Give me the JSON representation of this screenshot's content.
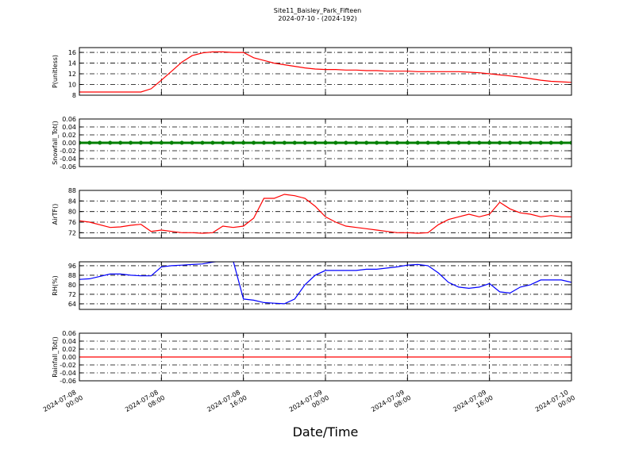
{
  "title": "Site11_Baisley_Park_Fifteen",
  "subtitle": "2024-07-10 - (2024-192)",
  "xlabel": "Date/Time",
  "xlim": [
    "2024-07-08 00:00",
    "2024-07-10 00:00"
  ],
  "xticks": [
    "2024-07-08 00:00",
    "2024-07-08 08:00",
    "2024-07-08 16:00",
    "2024-07-09 00:00",
    "2024-07-09 08:00",
    "2024-07-09 16:00",
    "2024-07-10 00:00"
  ],
  "x": [
    "2024-07-08 00:00",
    "2024-07-08 01:00",
    "2024-07-08 02:00",
    "2024-07-08 03:00",
    "2024-07-08 04:00",
    "2024-07-08 05:00",
    "2024-07-08 06:00",
    "2024-07-08 07:00",
    "2024-07-08 08:00",
    "2024-07-08 09:00",
    "2024-07-08 10:00",
    "2024-07-08 11:00",
    "2024-07-08 12:00",
    "2024-07-08 13:00",
    "2024-07-08 14:00",
    "2024-07-08 15:00",
    "2024-07-08 16:00",
    "2024-07-08 17:00",
    "2024-07-08 18:00",
    "2024-07-08 19:00",
    "2024-07-08 20:00",
    "2024-07-08 21:00",
    "2024-07-08 22:00",
    "2024-07-08 23:00",
    "2024-07-09 00:00",
    "2024-07-09 01:00",
    "2024-07-09 02:00",
    "2024-07-09 03:00",
    "2024-07-09 04:00",
    "2024-07-09 05:00",
    "2024-07-09 06:00",
    "2024-07-09 07:00",
    "2024-07-09 08:00",
    "2024-07-09 09:00",
    "2024-07-09 10:00",
    "2024-07-09 11:00",
    "2024-07-09 12:00",
    "2024-07-09 13:00",
    "2024-07-09 14:00",
    "2024-07-09 15:00",
    "2024-07-09 16:00",
    "2024-07-09 17:00",
    "2024-07-09 18:00",
    "2024-07-09 19:00",
    "2024-07-09 20:00",
    "2024-07-09 21:00",
    "2024-07-09 22:00",
    "2024-07-09 23:00",
    "2024-07-10 00:00"
  ],
  "chart_data": [
    {
      "type": "line",
      "ylabel": "P(unitless)",
      "ylim": [
        8,
        16.9
      ],
      "yticks": [
        8,
        10,
        12,
        14,
        16
      ],
      "grid": true,
      "series": [
        {
          "color": "#ff0000",
          "values": [
            8.6,
            8.6,
            8.6,
            8.6,
            8.6,
            8.6,
            8.6,
            9.2,
            10.8,
            12.5,
            14.2,
            15.4,
            15.9,
            16.1,
            16.1,
            16,
            16,
            15,
            14.5,
            14,
            13.7,
            13.4,
            13.1,
            12.9,
            12.8,
            12.8,
            12.7,
            12.7,
            12.6,
            12.6,
            12.5,
            12.5,
            12.5,
            12.4,
            12.4,
            12.4,
            12.4,
            12.4,
            12.3,
            12.2,
            12,
            11.8,
            11.6,
            11.4,
            11.1,
            10.8,
            10.6,
            10.5,
            10.4
          ]
        }
      ]
    },
    {
      "type": "line",
      "ylabel": "Snowfall_Tot()",
      "ylim": [
        -0.06,
        0.06
      ],
      "yticks": [
        {
          "value": -0.06,
          "label": "-0.06"
        },
        {
          "value": -0.04,
          "label": "-0.04"
        },
        {
          "value": -0.02,
          "label": "-0.02"
        },
        {
          "value": 0,
          "label": "0.00"
        },
        {
          "value": 0.02,
          "label": "0.02"
        },
        {
          "value": 0.04,
          "label": "0.04"
        },
        {
          "value": 0.06,
          "label": "0.06"
        }
      ],
      "grid": true,
      "series": [
        {
          "color": "#008000",
          "marker": true,
          "values": [
            0,
            0,
            0,
            0,
            0,
            0,
            0,
            0,
            0,
            0,
            0,
            0,
            0,
            0,
            0,
            0,
            0,
            0,
            0,
            0,
            0,
            0,
            0,
            0,
            0,
            0,
            0,
            0,
            0,
            0,
            0,
            0,
            0,
            0,
            0,
            0,
            0,
            0,
            0,
            0,
            0,
            0,
            0,
            0,
            0,
            0,
            0,
            0,
            0
          ]
        }
      ]
    },
    {
      "type": "line",
      "ylabel": "AirTF()",
      "ylim": [
        70,
        88
      ],
      "yticks": [
        72,
        76,
        80,
        84,
        88
      ],
      "grid": true,
      "series": [
        {
          "color": "#ff0000",
          "values": [
            76.5,
            76,
            75,
            74,
            74.2,
            74.8,
            75.2,
            72.5,
            73,
            72.5,
            72,
            72,
            71.8,
            72,
            74.5,
            74,
            74.5,
            77.5,
            85,
            85,
            86.5,
            86,
            85,
            82,
            78,
            76,
            74.5,
            74,
            73.5,
            73,
            72.5,
            72,
            72,
            71.8,
            72,
            75,
            77,
            78,
            79,
            78,
            79,
            83.5,
            81,
            79.5,
            79,
            78,
            78.5,
            78,
            78
          ]
        }
      ]
    },
    {
      "type": "line",
      "ylabel": "RH(%)",
      "ylim": [
        59.3,
        99.3
      ],
      "yticks": [
        64,
        72,
        80,
        88,
        96
      ],
      "grid": true,
      "series": [
        {
          "color": "#0000ff",
          "values": [
            84.5,
            85,
            87,
            89,
            89,
            88,
            87.5,
            87.5,
            95,
            96,
            96.5,
            97,
            97.5,
            99,
            100,
            100,
            68,
            67,
            65,
            64.5,
            64,
            68,
            80,
            88,
            92,
            92,
            92,
            92,
            93,
            93,
            94,
            95,
            96.5,
            97,
            96,
            90,
            82,
            78,
            77,
            78,
            81,
            74,
            73,
            78,
            80,
            84,
            84,
            84,
            82
          ]
        }
      ]
    },
    {
      "type": "line",
      "ylabel": "Rainfall_Tot()",
      "ylim": [
        -0.06,
        0.06
      ],
      "yticks": [
        {
          "value": -0.06,
          "label": "-0.06"
        },
        {
          "value": -0.04,
          "label": "-0.04"
        },
        {
          "value": -0.02,
          "label": "-0.02"
        },
        {
          "value": 0,
          "label": "0.00"
        },
        {
          "value": 0.02,
          "label": "0.02"
        },
        {
          "value": 0.04,
          "label": "0.04"
        },
        {
          "value": 0.06,
          "label": "0.06"
        }
      ],
      "grid": true,
      "series": [
        {
          "color": "#ff0000",
          "values": [
            0,
            0,
            0,
            0,
            0,
            0,
            0,
            0,
            0,
            0,
            0,
            0,
            0,
            0,
            0,
            0,
            0,
            0,
            0,
            0,
            0,
            0,
            0,
            0,
            0,
            0,
            0,
            0,
            0,
            0,
            0,
            0,
            0,
            0,
            0,
            0,
            0,
            0,
            0,
            0,
            0,
            0,
            0,
            0,
            0,
            0,
            0,
            0,
            0
          ]
        }
      ]
    }
  ]
}
